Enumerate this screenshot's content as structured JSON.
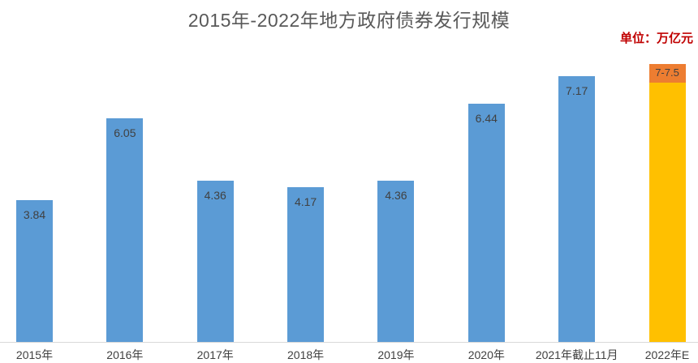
{
  "chart_data": {
    "type": "bar",
    "title": "2015年-2022年地方政府债券发行规模",
    "unit_label": "单位：万亿元",
    "xlabel": "",
    "ylabel": "",
    "ylim": [
      0,
      7.5
    ],
    "grid": false,
    "legend": false,
    "categories": [
      "2015年",
      "2016年",
      "2017年",
      "2018年",
      "2019年",
      "2020年",
      "2021年截止11月",
      "2022年E"
    ],
    "values": [
      3.84,
      6.05,
      4.36,
      4.17,
      4.36,
      6.44,
      7.17,
      null
    ],
    "bars": [
      {
        "category": "2015年",
        "type": "actual",
        "value": 3.84,
        "label": "3.84"
      },
      {
        "category": "2016年",
        "type": "actual",
        "value": 6.05,
        "label": "6.05"
      },
      {
        "category": "2017年",
        "type": "actual",
        "value": 4.36,
        "label": "4.36"
      },
      {
        "category": "2018年",
        "type": "actual",
        "value": 4.17,
        "label": "4.17"
      },
      {
        "category": "2019年",
        "type": "actual",
        "value": 4.36,
        "label": "4.36"
      },
      {
        "category": "2020年",
        "type": "actual",
        "value": 6.44,
        "label": "6.44"
      },
      {
        "category": "2021年截止11月",
        "type": "actual",
        "value": 7.17,
        "label": "7.17"
      },
      {
        "category": "2022年E",
        "type": "estimate",
        "range": [
          7.0,
          7.5
        ],
        "label": "7-7.5"
      }
    ],
    "colors": {
      "bar": "#5B9BD5",
      "estimate_base": "#FFC000",
      "estimate_top": "#ED7D31",
      "title_text": "#595959",
      "unit_text": "#C00000",
      "value_text": "#404040",
      "axis_label_text": "#404040",
      "axis_line": "#D9D9D9",
      "background": "#FFFFFF"
    }
  }
}
